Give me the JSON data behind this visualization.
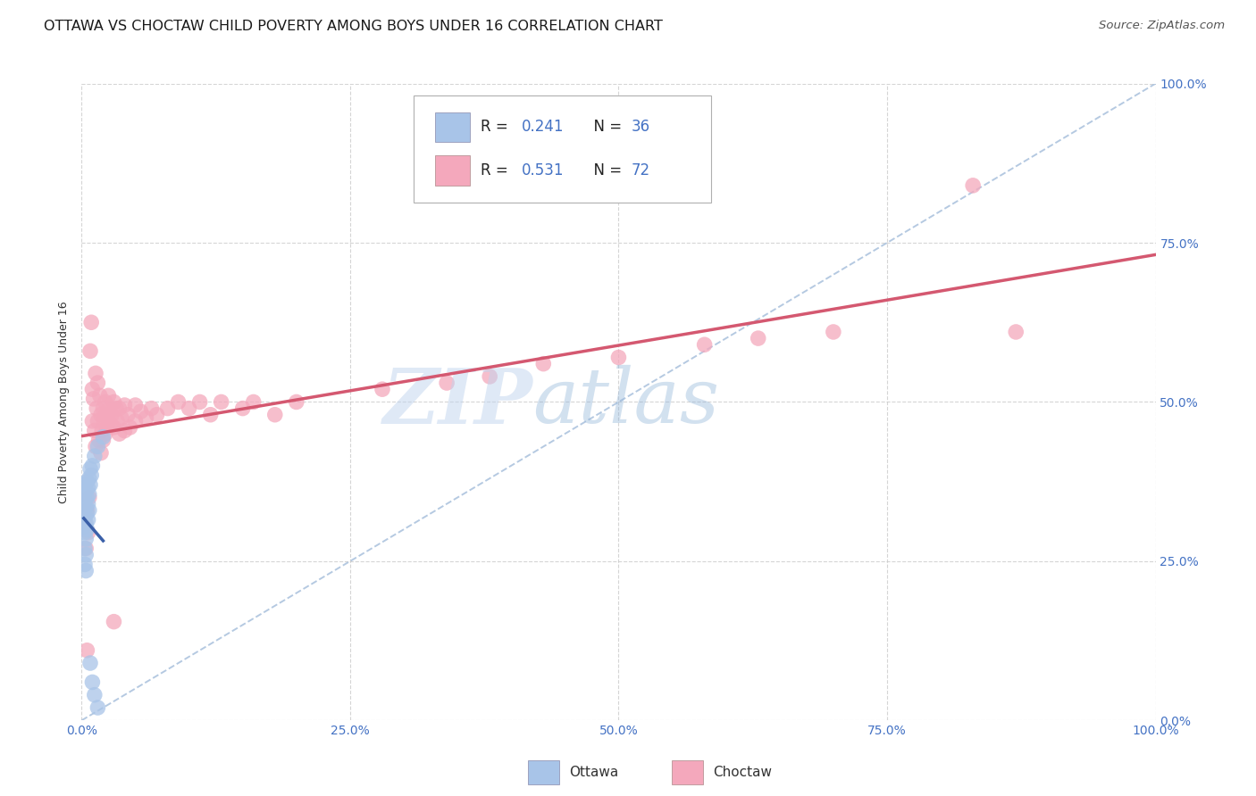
{
  "title": "OTTAWA VS CHOCTAW CHILD POVERTY AMONG BOYS UNDER 16 CORRELATION CHART",
  "source": "Source: ZipAtlas.com",
  "ylabel": "Child Poverty Among Boys Under 16",
  "xlim": [
    0.0,
    1.0
  ],
  "ylim": [
    0.0,
    1.0
  ],
  "xticks": [
    0.0,
    0.25,
    0.5,
    0.75,
    1.0
  ],
  "yticks": [
    0.0,
    0.25,
    0.5,
    0.75,
    1.0
  ],
  "xticklabels": [
    "0.0%",
    "25.0%",
    "50.0%",
    "75.0%",
    "100.0%"
  ],
  "yticklabels": [
    "0.0%",
    "25.0%",
    "50.0%",
    "75.0%",
    "100.0%"
  ],
  "ottawa_color": "#a8c4e8",
  "choctaw_color": "#f4a8bc",
  "ottawa_line_color": "#3a5fa8",
  "choctaw_line_color": "#d45870",
  "diag_color": "#a8c0dc",
  "background_color": "#ffffff",
  "grid_color": "#c8c8c8",
  "title_fontsize": 11.5,
  "axis_label_fontsize": 9,
  "tick_fontsize": 10,
  "ottawa_points": [
    [
      0.002,
      0.355
    ],
    [
      0.002,
      0.33
    ],
    [
      0.002,
      0.305
    ],
    [
      0.003,
      0.37
    ],
    [
      0.003,
      0.345
    ],
    [
      0.003,
      0.32
    ],
    [
      0.003,
      0.295
    ],
    [
      0.003,
      0.27
    ],
    [
      0.003,
      0.245
    ],
    [
      0.004,
      0.36
    ],
    [
      0.004,
      0.335
    ],
    [
      0.004,
      0.31
    ],
    [
      0.004,
      0.285
    ],
    [
      0.004,
      0.26
    ],
    [
      0.004,
      0.235
    ],
    [
      0.005,
      0.375
    ],
    [
      0.005,
      0.35
    ],
    [
      0.005,
      0.325
    ],
    [
      0.005,
      0.3
    ],
    [
      0.006,
      0.365
    ],
    [
      0.006,
      0.34
    ],
    [
      0.006,
      0.315
    ],
    [
      0.007,
      0.38
    ],
    [
      0.007,
      0.355
    ],
    [
      0.007,
      0.33
    ],
    [
      0.008,
      0.395
    ],
    [
      0.008,
      0.37
    ],
    [
      0.009,
      0.385
    ],
    [
      0.01,
      0.4
    ],
    [
      0.012,
      0.415
    ],
    [
      0.015,
      0.43
    ],
    [
      0.02,
      0.445
    ],
    [
      0.008,
      0.09
    ],
    [
      0.01,
      0.06
    ],
    [
      0.012,
      0.04
    ],
    [
      0.015,
      0.02
    ]
  ],
  "choctaw_points": [
    [
      0.003,
      0.31
    ],
    [
      0.004,
      0.27
    ],
    [
      0.005,
      0.33
    ],
    [
      0.006,
      0.295
    ],
    [
      0.007,
      0.35
    ],
    [
      0.008,
      0.58
    ],
    [
      0.009,
      0.625
    ],
    [
      0.01,
      0.52
    ],
    [
      0.01,
      0.47
    ],
    [
      0.011,
      0.505
    ],
    [
      0.012,
      0.455
    ],
    [
      0.013,
      0.545
    ],
    [
      0.013,
      0.43
    ],
    [
      0.014,
      0.49
    ],
    [
      0.015,
      0.53
    ],
    [
      0.015,
      0.47
    ],
    [
      0.016,
      0.44
    ],
    [
      0.017,
      0.51
    ],
    [
      0.018,
      0.48
    ],
    [
      0.018,
      0.42
    ],
    [
      0.019,
      0.455
    ],
    [
      0.02,
      0.49
    ],
    [
      0.02,
      0.44
    ],
    [
      0.021,
      0.47
    ],
    [
      0.022,
      0.5
    ],
    [
      0.022,
      0.45
    ],
    [
      0.023,
      0.48
    ],
    [
      0.024,
      0.46
    ],
    [
      0.025,
      0.51
    ],
    [
      0.025,
      0.47
    ],
    [
      0.026,
      0.49
    ],
    [
      0.027,
      0.465
    ],
    [
      0.028,
      0.48
    ],
    [
      0.03,
      0.5
    ],
    [
      0.03,
      0.46
    ],
    [
      0.032,
      0.49
    ],
    [
      0.033,
      0.47
    ],
    [
      0.035,
      0.49
    ],
    [
      0.035,
      0.45
    ],
    [
      0.037,
      0.475
    ],
    [
      0.04,
      0.495
    ],
    [
      0.04,
      0.455
    ],
    [
      0.043,
      0.48
    ],
    [
      0.045,
      0.46
    ],
    [
      0.05,
      0.495
    ],
    [
      0.05,
      0.47
    ],
    [
      0.055,
      0.485
    ],
    [
      0.06,
      0.475
    ],
    [
      0.065,
      0.49
    ],
    [
      0.07,
      0.48
    ],
    [
      0.08,
      0.49
    ],
    [
      0.09,
      0.5
    ],
    [
      0.1,
      0.49
    ],
    [
      0.11,
      0.5
    ],
    [
      0.12,
      0.48
    ],
    [
      0.13,
      0.5
    ],
    [
      0.15,
      0.49
    ],
    [
      0.16,
      0.5
    ],
    [
      0.18,
      0.48
    ],
    [
      0.2,
      0.5
    ],
    [
      0.28,
      0.52
    ],
    [
      0.34,
      0.53
    ],
    [
      0.38,
      0.54
    ],
    [
      0.43,
      0.56
    ],
    [
      0.5,
      0.57
    ],
    [
      0.58,
      0.59
    ],
    [
      0.63,
      0.6
    ],
    [
      0.7,
      0.61
    ],
    [
      0.83,
      0.84
    ],
    [
      0.87,
      0.61
    ],
    [
      0.005,
      0.11
    ],
    [
      0.03,
      0.155
    ]
  ]
}
